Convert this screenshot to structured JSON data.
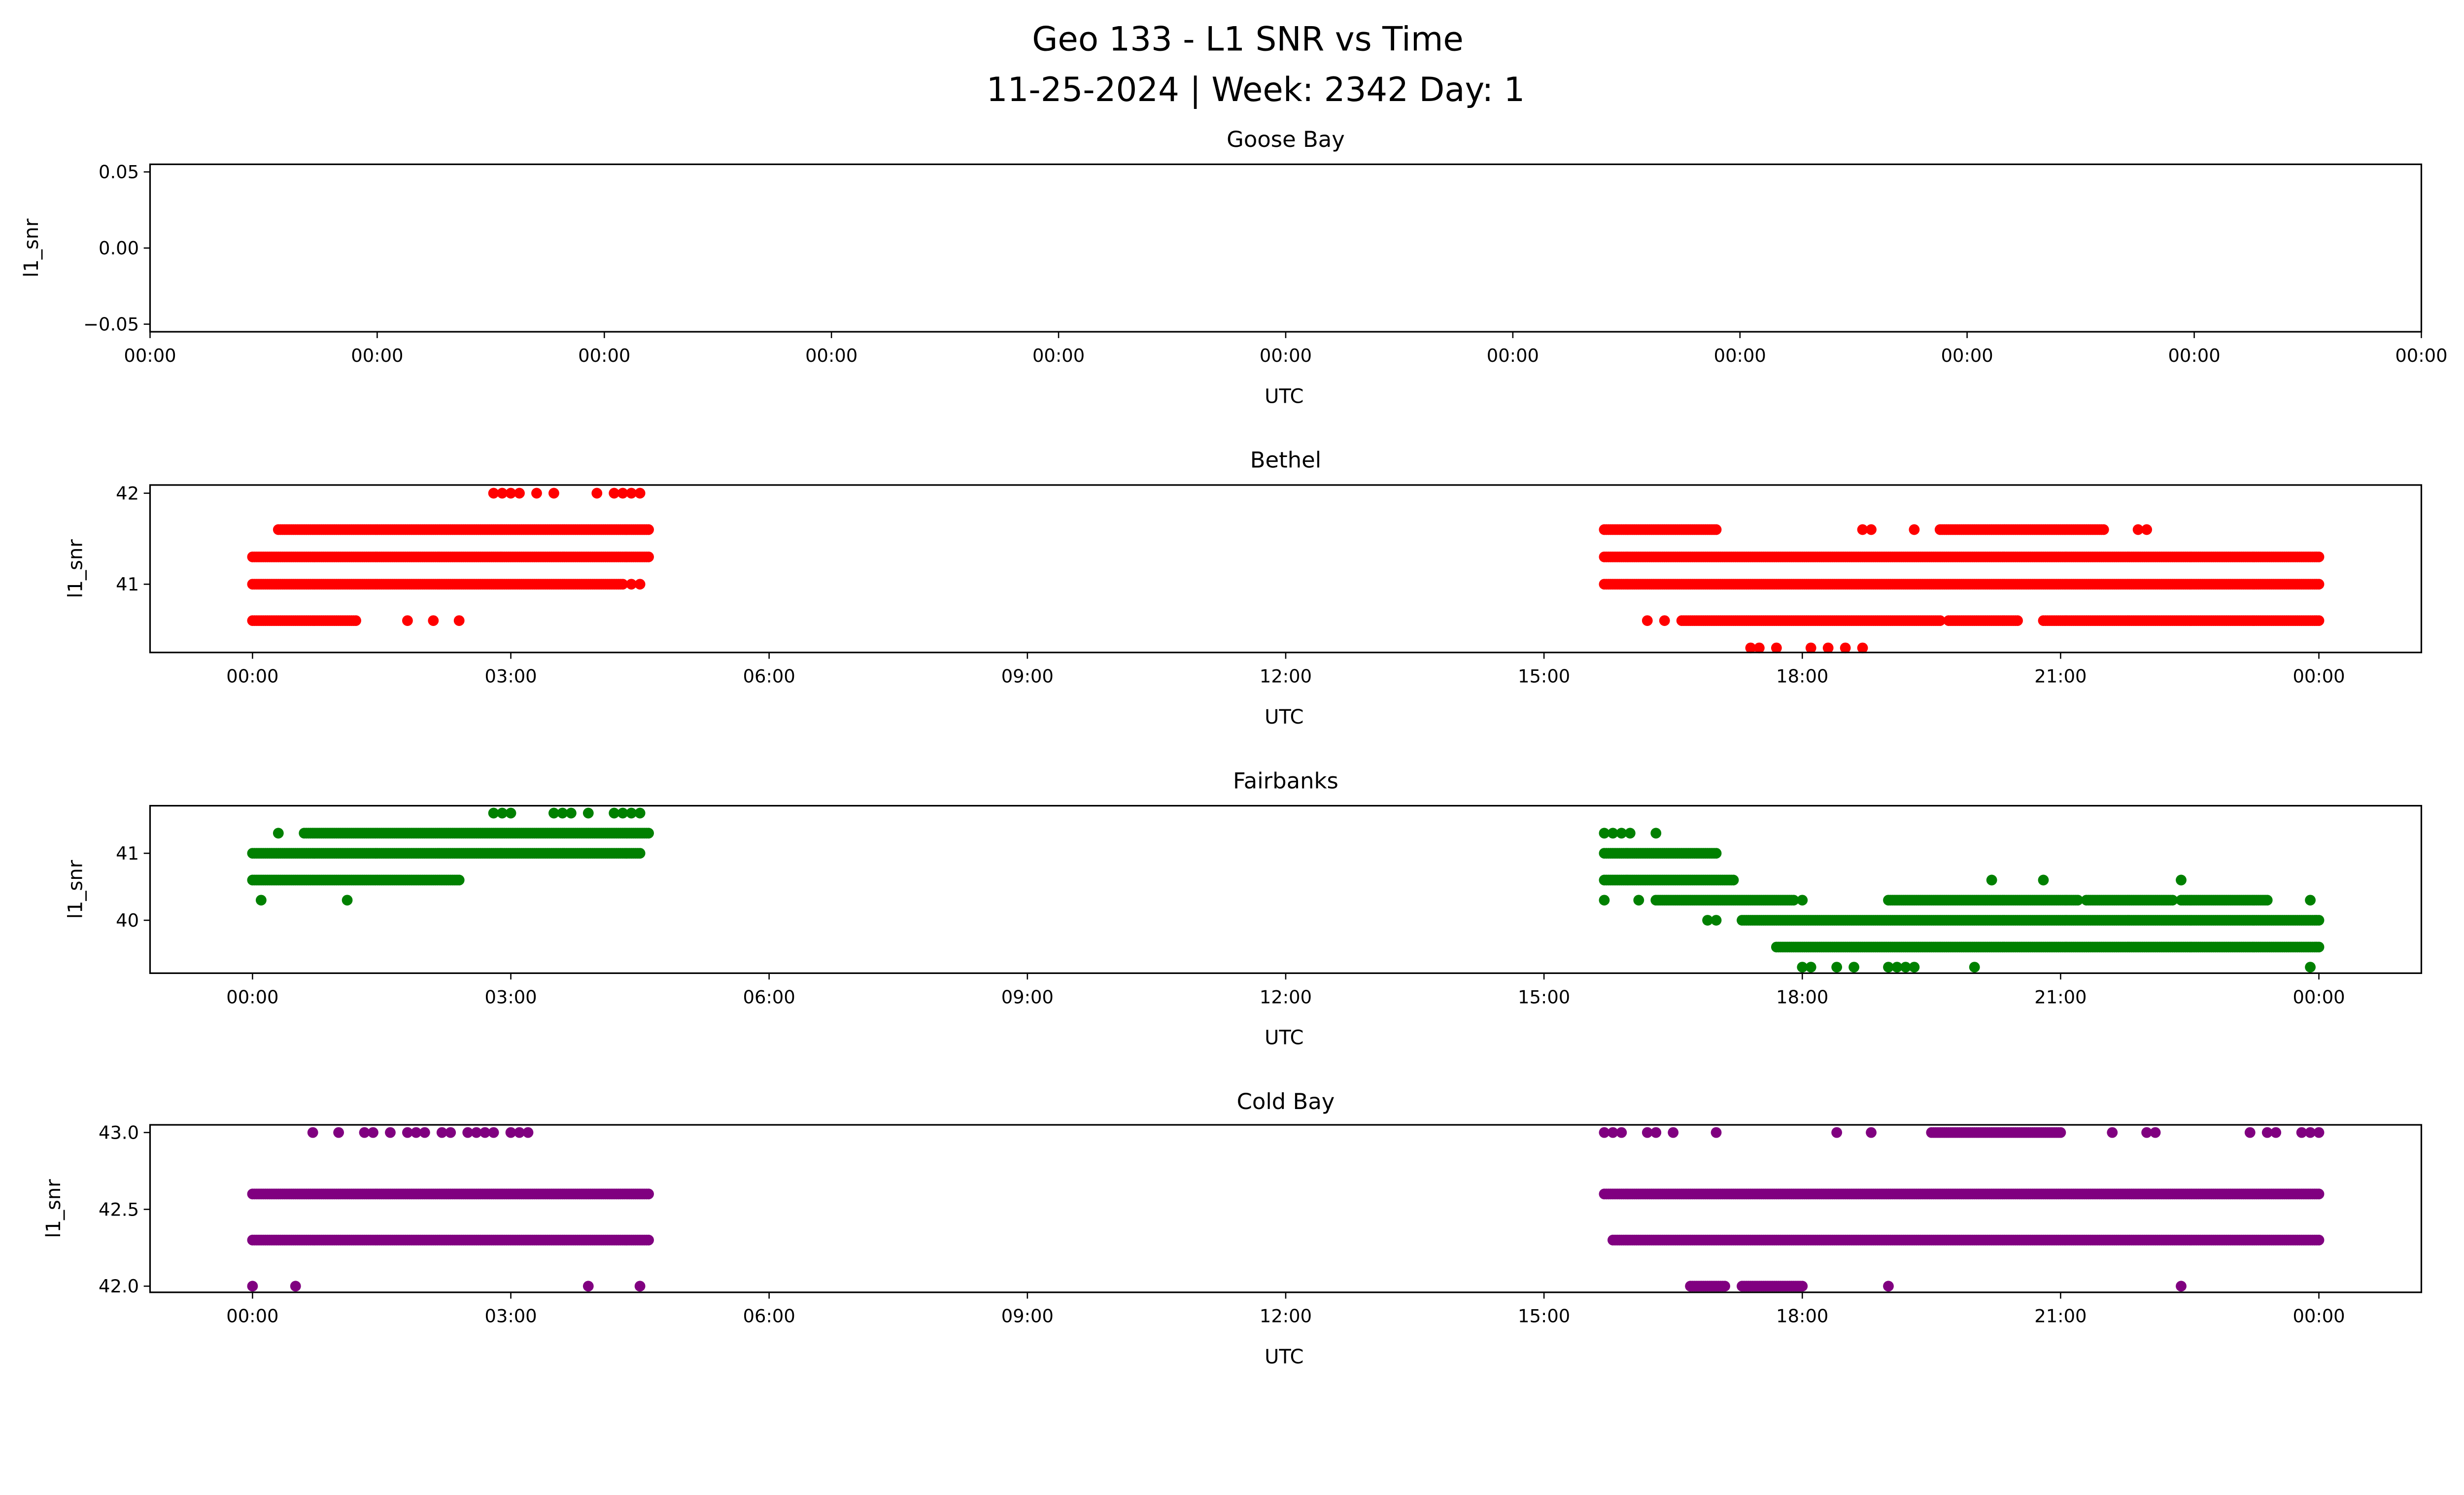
{
  "chart_data": {
    "type": "scatter",
    "title": "Geo 133 - L1 SNR vs Time",
    "subtitle": "11-25-2024 | Week: 2342 Day: 1",
    "xlabel": "UTC",
    "ylabel": "l1_snr",
    "x_units": "hours since 00:00 UTC",
    "panels": [
      {
        "title": "Goose Bay",
        "color": "#1f77b4",
        "ylim": [
          -0.055,
          0.055
        ],
        "yticks": [
          0.05,
          0.0,
          -0.05
        ],
        "ytick_labels": [
          "0.05",
          "0.00",
          "−0.05"
        ],
        "xlim": [
          0,
          1
        ],
        "xticks": [
          0,
          0.1,
          0.2,
          0.3,
          0.4,
          0.5,
          0.6,
          0.7,
          0.8,
          0.9,
          1
        ],
        "xtick_labels": [
          "00:00",
          "00:00",
          "00:00",
          "00:00",
          "00:00",
          "00:00",
          "00:00",
          "00:00",
          "00:00",
          "00:00",
          "00:00"
        ],
        "series": []
      },
      {
        "title": "Bethel",
        "color": "#ff0000",
        "ylim": [
          40.25,
          42.09
        ],
        "yticks": [
          42,
          41
        ],
        "ytick_labels": [
          "42",
          "41"
        ],
        "xlim": [
          -1.19,
          25.19
        ],
        "xticks": [
          0,
          3,
          6,
          9,
          12,
          15,
          18,
          21,
          24
        ],
        "xtick_labels": [
          "00:00",
          "03:00",
          "06:00",
          "09:00",
          "12:00",
          "15:00",
          "18:00",
          "21:00",
          "00:00"
        ],
        "series": [
          {
            "y": 42.0,
            "runs": [],
            "points": [
              2.8,
              2.9,
              3.0,
              3.1,
              3.3,
              3.5,
              4.0,
              4.2,
              4.3,
              4.4,
              4.5
            ]
          },
          {
            "y": 41.6,
            "runs": [
              [
                0.3,
                4.6
              ],
              [
                15.7,
                17.0
              ],
              [
                19.6,
                21.5
              ]
            ],
            "points": [
              18.7,
              18.8,
              19.3,
              21.9,
              22.0
            ]
          },
          {
            "y": 41.3,
            "runs": [
              [
                0,
                4.6
              ],
              [
                15.7,
                24
              ]
            ],
            "points": []
          },
          {
            "y": 41.0,
            "runs": [
              [
                0,
                4.3
              ],
              [
                15.7,
                24
              ]
            ],
            "points": [
              4.4,
              4.5
            ]
          },
          {
            "y": 40.6,
            "runs": [
              [
                0,
                1.2
              ],
              [
                16.6,
                19.6
              ],
              [
                19.7,
                20.5
              ],
              [
                20.8,
                24
              ]
            ],
            "points": [
              1.8,
              2.1,
              2.4,
              16.2,
              16.4
            ]
          },
          {
            "y": 40.3,
            "runs": [],
            "points": [
              17.4,
              17.5,
              17.7,
              18.1,
              18.3,
              18.5,
              18.7
            ]
          }
        ]
      },
      {
        "title": "Fairbanks",
        "color": "#008000",
        "ylim": [
          39.21,
          41.71
        ],
        "yticks": [
          41,
          40
        ],
        "ytick_labels": [
          "41",
          "40"
        ],
        "xlim": [
          -1.19,
          25.19
        ],
        "xticks": [
          0,
          3,
          6,
          9,
          12,
          15,
          18,
          21,
          24
        ],
        "xtick_labels": [
          "00:00",
          "03:00",
          "06:00",
          "09:00",
          "12:00",
          "15:00",
          "18:00",
          "21:00",
          "00:00"
        ],
        "series": [
          {
            "y": 41.6,
            "runs": [],
            "points": [
              2.8,
              2.9,
              3.0,
              3.5,
              3.6,
              3.7,
              3.9,
              4.2,
              4.3,
              4.4,
              4.5
            ]
          },
          {
            "y": 41.3,
            "runs": [
              [
                0.6,
                4.6
              ]
            ],
            "points": [
              0.3,
              15.7,
              15.8,
              15.9,
              16.0,
              16.3
            ]
          },
          {
            "y": 41.0,
            "runs": [
              [
                0,
                4.5
              ],
              [
                15.7,
                17.0
              ]
            ],
            "points": []
          },
          {
            "y": 40.6,
            "runs": [
              [
                0,
                2.4
              ],
              [
                15.7,
                17.2
              ]
            ],
            "points": [
              20.2,
              20.8,
              22.4
            ]
          },
          {
            "y": 40.3,
            "runs": [
              [
                16.3,
                17.9
              ],
              [
                19.0,
                21.2
              ],
              [
                21.3,
                22.3
              ],
              [
                22.4,
                23.4
              ]
            ],
            "points": [
              0.1,
              1.1,
              15.7,
              16.1,
              18.0,
              23.9
            ]
          },
          {
            "y": 40.0,
            "runs": [
              [
                17.3,
                24
              ]
            ],
            "points": [
              16.9,
              17.0
            ]
          },
          {
            "y": 39.6,
            "runs": [
              [
                17.7,
                24
              ]
            ],
            "points": []
          },
          {
            "y": 39.3,
            "runs": [],
            "points": [
              18.0,
              18.1,
              18.4,
              18.6,
              19.0,
              19.1,
              19.2,
              19.3,
              20.0,
              23.9
            ]
          }
        ]
      },
      {
        "title": "Cold Bay",
        "color": "#800080",
        "ylim": [
          41.96,
          43.05
        ],
        "yticks": [
          43.0,
          42.5,
          42.0
        ],
        "ytick_labels": [
          "43.0",
          "42.5",
          "42.0"
        ],
        "xlim": [
          -1.19,
          25.19
        ],
        "xticks": [
          0,
          3,
          6,
          9,
          12,
          15,
          18,
          21,
          24
        ],
        "xtick_labels": [
          "00:00",
          "03:00",
          "06:00",
          "09:00",
          "12:00",
          "15:00",
          "18:00",
          "21:00",
          "00:00"
        ],
        "series": [
          {
            "y": 43.0,
            "runs": [
              [
                19.5,
                21.0
              ]
            ],
            "points": [
              0.7,
              1.0,
              1.3,
              1.4,
              1.6,
              1.8,
              1.9,
              2.0,
              2.2,
              2.3,
              2.5,
              2.6,
              2.7,
              2.8,
              3.0,
              3.1,
              3.2,
              15.7,
              15.8,
              15.9,
              16.2,
              16.3,
              16.5,
              17.0,
              18.4,
              18.8,
              21.6,
              22.0,
              22.1,
              23.2,
              23.4,
              23.5,
              23.8,
              23.9,
              24.0
            ]
          },
          {
            "y": 42.6,
            "runs": [
              [
                0,
                4.6
              ],
              [
                15.7,
                24
              ]
            ],
            "points": []
          },
          {
            "y": 42.3,
            "runs": [
              [
                0,
                4.6
              ],
              [
                15.8,
                24
              ]
            ],
            "points": []
          },
          {
            "y": 42.0,
            "runs": [
              [
                16.7,
                17.1
              ],
              [
                17.3,
                18.0
              ]
            ],
            "points": [
              0,
              0.5,
              3.9,
              4.5,
              19.0,
              22.4
            ]
          }
        ]
      }
    ]
  }
}
